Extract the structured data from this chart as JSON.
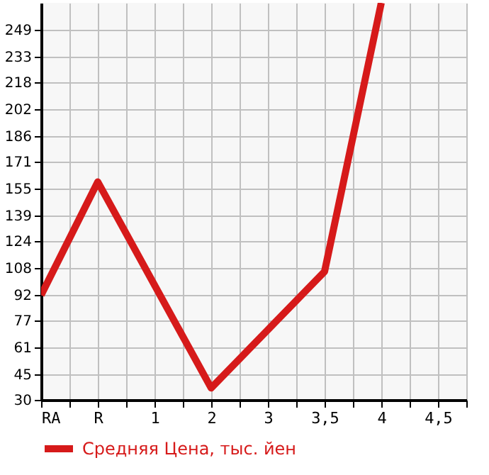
{
  "chart_data": {
    "type": "line",
    "categories": [
      "RA",
      "R",
      "1",
      "2",
      "3",
      "3,5",
      "4",
      "4,5"
    ],
    "series": [
      {
        "name": "Средняя Цена, тыс. йен",
        "color": "#d61a1a",
        "values": [
          92,
          159,
          null,
          37,
          null,
          106,
          265,
          null
        ]
      }
    ],
    "ylim": [
      30,
      265
    ],
    "yticks": [
      30,
      45,
      61,
      77,
      92,
      108,
      124,
      139,
      155,
      171,
      186,
      202,
      218,
      233,
      249
    ],
    "grid": true,
    "legend": "bottom left",
    "marker": "none",
    "line_style": "solid"
  }
}
